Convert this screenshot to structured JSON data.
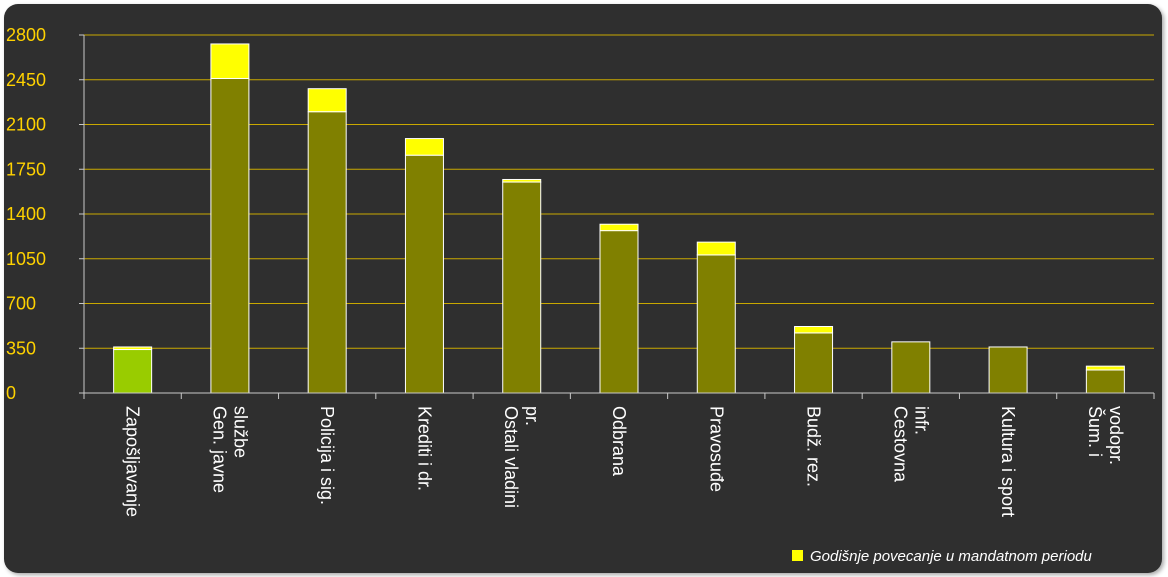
{
  "chart_data": {
    "type": "bar",
    "stacked": true,
    "categories": [
      [
        "Zapošljavanje"
      ],
      [
        "Gen. javne",
        "službe"
      ],
      [
        "Policija i sig."
      ],
      [
        "Krediti i dr."
      ],
      [
        "Ostali vladini",
        "pr."
      ],
      [
        "Odbrana"
      ],
      [
        "Pravosuđe"
      ],
      [
        "Budž. rez."
      ],
      [
        "Cestovna",
        "infr."
      ],
      [
        "Kultura i sport"
      ],
      [
        "Šum. i",
        "vodopr."
      ]
    ],
    "series": [
      {
        "values": [
          340,
          2460,
          2200,
          1860,
          1650,
          1270,
          1080,
          470,
          400,
          360,
          180
        ],
        "colors": [
          "#99cc00",
          "#808000",
          "#808000",
          "#808000",
          "#808000",
          "#808000",
          "#808000",
          "#808000",
          "#808000",
          "#808000",
          "#808000"
        ]
      },
      {
        "name": "Godišnje povecanje u mandatnom periodu",
        "values": [
          20,
          270,
          180,
          130,
          20,
          50,
          100,
          50,
          0,
          0,
          30
        ],
        "color": "#ffff00"
      }
    ],
    "y_ticks": [
      0,
      350,
      700,
      1050,
      1400,
      1750,
      2100,
      2450,
      2800
    ],
    "ylim": [
      0,
      2800
    ],
    "grid": true,
    "legend_position": "bottom-right",
    "colors": {
      "background": "#2f2f2f",
      "grid": "#c9a800",
      "axis": "#c8c8c8",
      "tick_text": "#ffd200",
      "label_text": "#ffffff"
    }
  }
}
